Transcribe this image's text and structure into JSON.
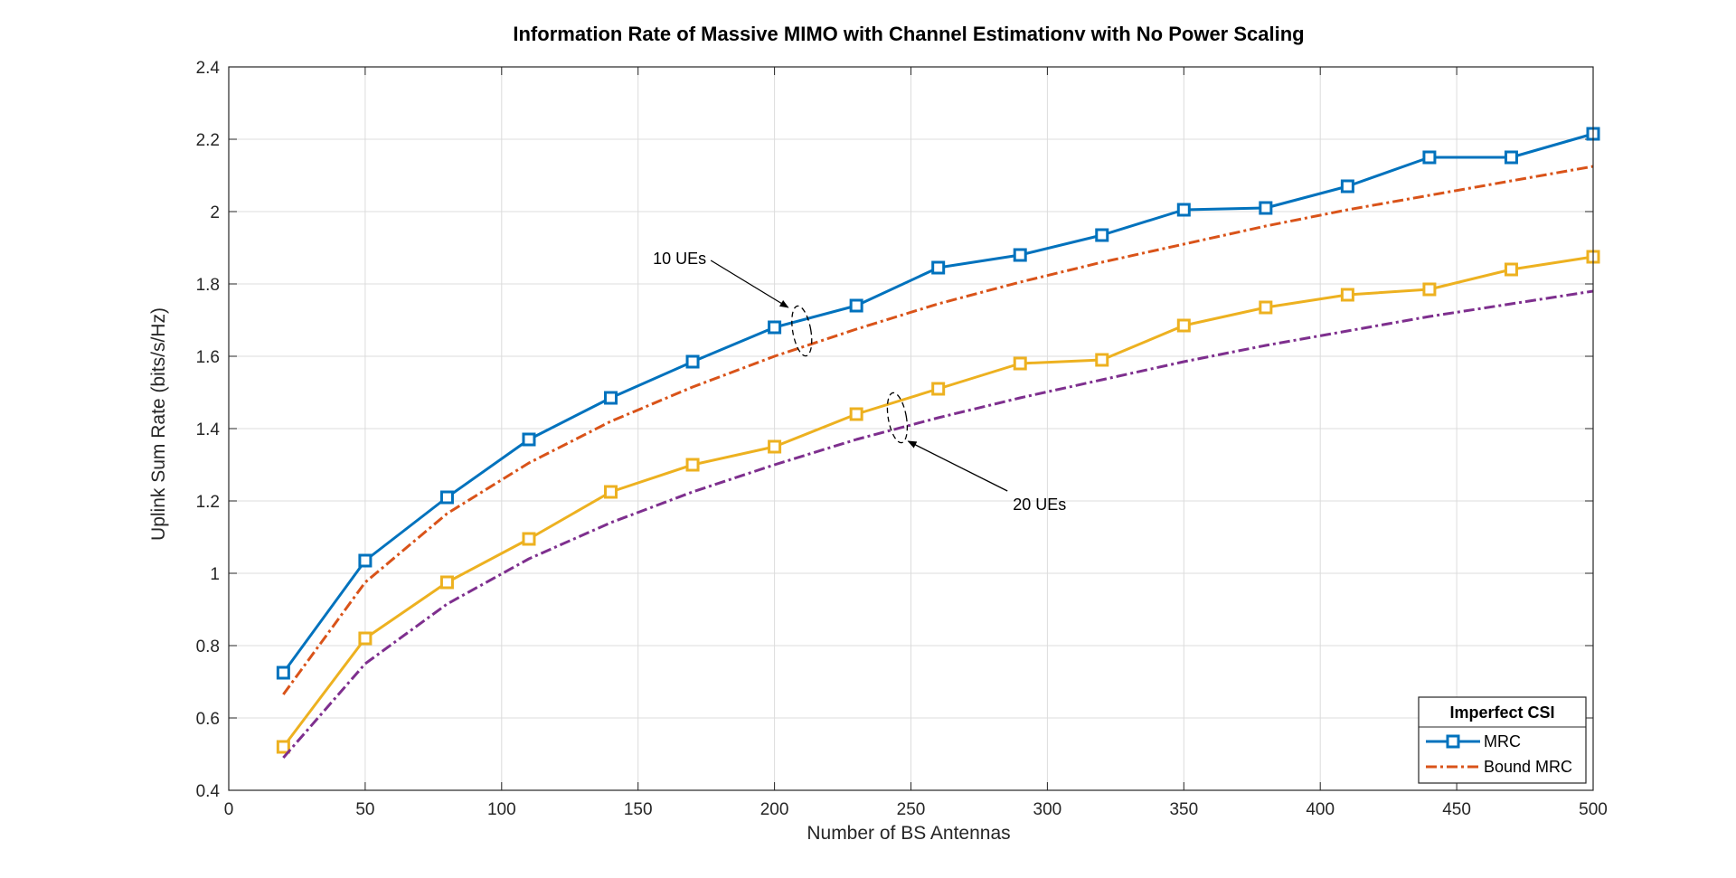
{
  "chart_data": {
    "type": "line",
    "title": "Information Rate of Massive MIMO with Channel Estimationv with No Power Scaling",
    "xlabel": "Number of BS Antennas",
    "ylabel": "Uplink Sum Rate (bits/s/Hz)",
    "xlim": [
      0,
      500
    ],
    "ylim": [
      0.4,
      2.4
    ],
    "xticks": [
      "0",
      "50",
      "100",
      "150",
      "200",
      "250",
      "300",
      "350",
      "400",
      "450",
      "500"
    ],
    "yticks": [
      "0.4",
      "0.6",
      "0.8",
      "1",
      "1.2",
      "1.4",
      "1.6",
      "1.8",
      "2",
      "2.2",
      "2.4"
    ],
    "grid": true,
    "x": [
      20,
      50,
      80,
      110,
      140,
      170,
      200,
      230,
      260,
      290,
      320,
      350,
      380,
      410,
      440,
      470,
      500
    ],
    "series": [
      {
        "key": "mrc_10",
        "name": "MRC",
        "style": "solid-square",
        "color": "#0072BD",
        "values": [
          0.725,
          1.035,
          1.21,
          1.37,
          1.485,
          1.585,
          1.68,
          1.74,
          1.845,
          1.88,
          1.935,
          2.005,
          2.01,
          2.07,
          2.15,
          2.15,
          2.215
        ]
      },
      {
        "key": "bound_10",
        "name": "Bound MRC",
        "style": "dashdot",
        "color": "#D95319",
        "values": [
          0.665,
          0.975,
          1.165,
          1.305,
          1.42,
          1.515,
          1.6,
          1.675,
          1.745,
          1.805,
          1.86,
          1.91,
          1.96,
          2.005,
          2.045,
          2.085,
          2.125
        ]
      },
      {
        "key": "mrc_20",
        "style": "solid-square",
        "color": "#EDB120",
        "values": [
          0.52,
          0.82,
          0.975,
          1.095,
          1.225,
          1.3,
          1.35,
          1.44,
          1.51,
          1.58,
          1.59,
          1.685,
          1.735,
          1.77,
          1.785,
          1.84,
          1.875
        ]
      },
      {
        "key": "bound_20",
        "style": "dashdot",
        "color": "#7E2F8E",
        "values": [
          0.49,
          0.75,
          0.915,
          1.04,
          1.14,
          1.225,
          1.3,
          1.37,
          1.43,
          1.485,
          1.535,
          1.585,
          1.63,
          1.67,
          1.71,
          1.745,
          1.78
        ]
      }
    ],
    "legend": {
      "title": "Imperfect CSI",
      "placement": "bottom-right",
      "entries": [
        "MRC",
        "Bound MRC"
      ]
    },
    "annotations": [
      {
        "text": "10 UEs",
        "label_x": 175,
        "label_y": 1.87,
        "arrow_x": 205,
        "arrow_y": 1.735,
        "ellipse_x": 210,
        "ellipse_y": 1.67,
        "ellipse_dy": 0.07
      },
      {
        "text": "20 UEs",
        "label_x": 290,
        "label_y": 1.19,
        "arrow_x": 249,
        "arrow_y": 1.365,
        "ellipse_x": 245,
        "ellipse_y": 1.43,
        "ellipse_dy": 0.07
      }
    ]
  }
}
